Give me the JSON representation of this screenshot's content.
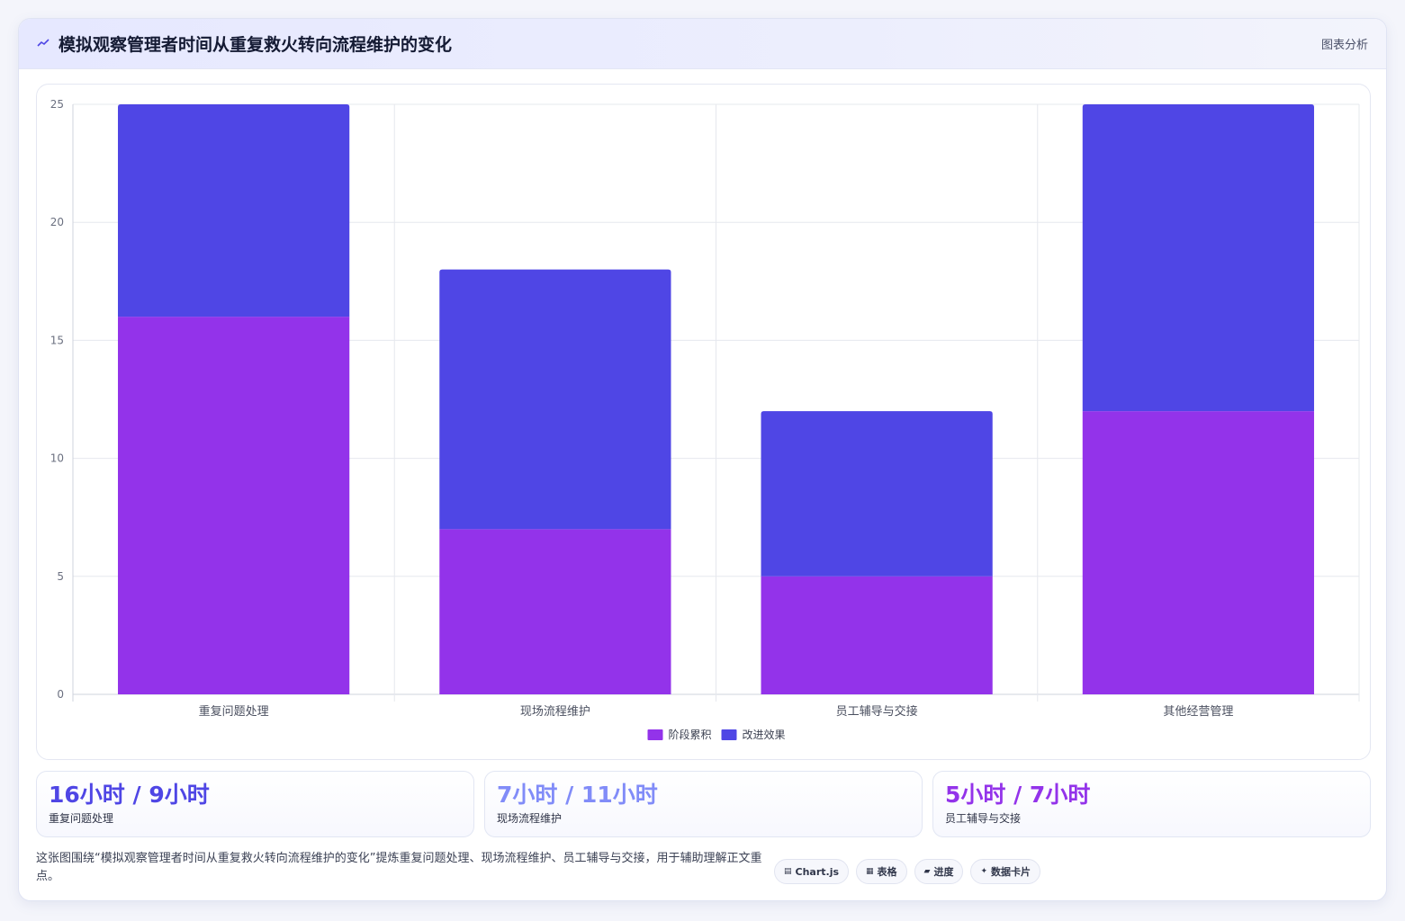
{
  "header": {
    "title": "模拟观察管理者时间从重复救火转向流程维护的变化",
    "tag": "图表分析",
    "icon": "trend-line-icon"
  },
  "colors": {
    "series_a": "#9333ea",
    "series_b": "#4f46e5",
    "stat_1": "#4f46e5",
    "stat_2": "#818cf8",
    "stat_3": "#9333ea"
  },
  "chart_data": {
    "type": "bar",
    "stacked": true,
    "title": "",
    "xlabel": "",
    "ylabel": "",
    "categories": [
      "重复问题处理",
      "现场流程维护",
      "员工辅导与交接",
      "其他经营管理"
    ],
    "series": [
      {
        "name": "阶段累积",
        "color": "#9333ea",
        "values": [
          16,
          7,
          5,
          12
        ]
      },
      {
        "name": "改进效果",
        "color": "#4f46e5",
        "values": [
          9,
          11,
          7,
          13
        ]
      }
    ],
    "ylim": [
      0,
      25
    ],
    "yticks": [
      0,
      5,
      10,
      15,
      20,
      25
    ],
    "grid": true,
    "legend": "bottom-center"
  },
  "stats": [
    {
      "value": "16小时 / 9小时",
      "label": "重复问题处理"
    },
    {
      "value": "7小时 / 11小时",
      "label": "现场流程维护"
    },
    {
      "value": "5小时 / 7小时",
      "label": "员工辅导与交接"
    }
  ],
  "footer": {
    "description": "这张图围绕“模拟观察管理者时间从重复救火转向流程维护的变化”提炼重复问题处理、现场流程维护、员工辅导与交接，用于辅助理解正文重点。",
    "chips": [
      {
        "icon": "chart-icon",
        "glyph": "▤",
        "label": "Chart.js"
      },
      {
        "icon": "table-icon",
        "glyph": "▦",
        "label": "表格"
      },
      {
        "icon": "progress-icon",
        "glyph": "▰",
        "label": "进度"
      },
      {
        "icon": "sparkle-icon",
        "glyph": "✦",
        "label": "数据卡片"
      }
    ]
  }
}
